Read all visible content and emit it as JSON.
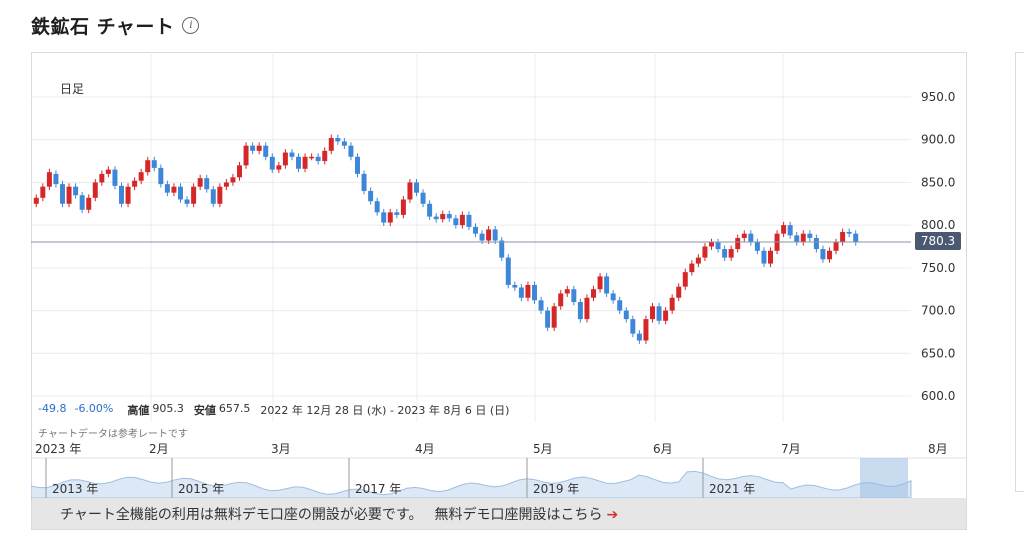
{
  "header": {
    "title": "鉄鉱石 チャート",
    "info_icon": "info-icon"
  },
  "chart_data": {
    "type": "candlestick",
    "period_label": "日足",
    "current_price": "780.3",
    "ylim": [
      600,
      950
    ],
    "y_ticks": [
      "950.0",
      "900.0",
      "850.0",
      "800.0",
      "750.0",
      "700.0",
      "650.0",
      "600.0"
    ],
    "x_ticks": [
      "2023 年",
      "2月",
      "3月",
      "4月",
      "5月",
      "6月",
      "7月",
      "8月"
    ],
    "colors": {
      "up": "#d62728",
      "down": "#3e87d8",
      "price_line": "#8a94a8"
    },
    "series": [
      {
        "o": 825,
        "c": 832
      },
      {
        "o": 832,
        "c": 845
      },
      {
        "o": 845,
        "c": 862
      },
      {
        "o": 860,
        "c": 848
      },
      {
        "o": 848,
        "c": 825
      },
      {
        "o": 825,
        "c": 845
      },
      {
        "o": 845,
        "c": 835
      },
      {
        "o": 835,
        "c": 818
      },
      {
        "o": 818,
        "c": 832
      },
      {
        "o": 832,
        "c": 850
      },
      {
        "o": 850,
        "c": 860
      },
      {
        "o": 860,
        "c": 865
      },
      {
        "o": 865,
        "c": 846
      },
      {
        "o": 846,
        "c": 825
      },
      {
        "o": 825,
        "c": 845
      },
      {
        "o": 845,
        "c": 852
      },
      {
        "o": 852,
        "c": 862
      },
      {
        "o": 862,
        "c": 876
      },
      {
        "o": 876,
        "c": 867
      },
      {
        "o": 867,
        "c": 848
      },
      {
        "o": 848,
        "c": 838
      },
      {
        "o": 838,
        "c": 845
      },
      {
        "o": 845,
        "c": 830
      },
      {
        "o": 830,
        "c": 825
      },
      {
        "o": 825,
        "c": 845
      },
      {
        "o": 845,
        "c": 855
      },
      {
        "o": 855,
        "c": 842
      },
      {
        "o": 842,
        "c": 825
      },
      {
        "o": 825,
        "c": 845
      },
      {
        "o": 845,
        "c": 850
      },
      {
        "o": 850,
        "c": 856
      },
      {
        "o": 856,
        "c": 870
      },
      {
        "o": 870,
        "c": 893
      },
      {
        "o": 893,
        "c": 887
      },
      {
        "o": 887,
        "c": 893
      },
      {
        "o": 893,
        "c": 880
      },
      {
        "o": 880,
        "c": 865
      },
      {
        "o": 865,
        "c": 870
      },
      {
        "o": 870,
        "c": 885
      },
      {
        "o": 885,
        "c": 880
      },
      {
        "o": 880,
        "c": 866
      },
      {
        "o": 866,
        "c": 880
      },
      {
        "o": 880,
        "c": 880
      },
      {
        "o": 880,
        "c": 875
      },
      {
        "o": 875,
        "c": 887
      },
      {
        "o": 887,
        "c": 902
      },
      {
        "o": 902,
        "c": 898
      },
      {
        "o": 898,
        "c": 893
      },
      {
        "o": 893,
        "c": 880
      },
      {
        "o": 880,
        "c": 860
      },
      {
        "o": 860,
        "c": 840
      },
      {
        "o": 840,
        "c": 828
      },
      {
        "o": 828,
        "c": 815
      },
      {
        "o": 815,
        "c": 803
      },
      {
        "o": 803,
        "c": 815
      },
      {
        "o": 815,
        "c": 812
      },
      {
        "o": 812,
        "c": 830
      },
      {
        "o": 830,
        "c": 850
      },
      {
        "o": 850,
        "c": 838
      },
      {
        "o": 838,
        "c": 825
      },
      {
        "o": 825,
        "c": 810
      },
      {
        "o": 810,
        "c": 807
      },
      {
        "o": 807,
        "c": 813
      },
      {
        "o": 813,
        "c": 808
      },
      {
        "o": 808,
        "c": 800
      },
      {
        "o": 800,
        "c": 812
      },
      {
        "o": 812,
        "c": 798
      },
      {
        "o": 798,
        "c": 790
      },
      {
        "o": 790,
        "c": 782
      },
      {
        "o": 782,
        "c": 795
      },
      {
        "o": 795,
        "c": 782
      },
      {
        "o": 782,
        "c": 762
      },
      {
        "o": 762,
        "c": 730
      },
      {
        "o": 730,
        "c": 727
      },
      {
        "o": 727,
        "c": 715
      },
      {
        "o": 715,
        "c": 730
      },
      {
        "o": 730,
        "c": 712
      },
      {
        "o": 712,
        "c": 700
      },
      {
        "o": 700,
        "c": 680
      },
      {
        "o": 680,
        "c": 705
      },
      {
        "o": 705,
        "c": 720
      },
      {
        "o": 720,
        "c": 725
      },
      {
        "o": 725,
        "c": 710
      },
      {
        "o": 710,
        "c": 690
      },
      {
        "o": 690,
        "c": 715
      },
      {
        "o": 715,
        "c": 725
      },
      {
        "o": 725,
        "c": 740
      },
      {
        "o": 740,
        "c": 720
      },
      {
        "o": 720,
        "c": 712
      },
      {
        "o": 712,
        "c": 700
      },
      {
        "o": 700,
        "c": 690
      },
      {
        "o": 690,
        "c": 673
      },
      {
        "o": 673,
        "c": 665
      },
      {
        "o": 665,
        "c": 690
      },
      {
        "o": 690,
        "c": 705
      },
      {
        "o": 705,
        "c": 688
      },
      {
        "o": 688,
        "c": 700
      },
      {
        "o": 700,
        "c": 715
      },
      {
        "o": 715,
        "c": 728
      },
      {
        "o": 728,
        "c": 745
      },
      {
        "o": 745,
        "c": 755
      },
      {
        "o": 755,
        "c": 762
      },
      {
        "o": 762,
        "c": 775
      },
      {
        "o": 775,
        "c": 780
      },
      {
        "o": 780,
        "c": 772
      },
      {
        "o": 772,
        "c": 762
      },
      {
        "o": 762,
        "c": 772
      },
      {
        "o": 772,
        "c": 785
      },
      {
        "o": 785,
        "c": 790
      },
      {
        "o": 790,
        "c": 780
      },
      {
        "o": 780,
        "c": 770
      },
      {
        "o": 770,
        "c": 755
      },
      {
        "o": 755,
        "c": 770
      },
      {
        "o": 770,
        "c": 790
      },
      {
        "o": 790,
        "c": 800
      },
      {
        "o": 800,
        "c": 788
      },
      {
        "o": 788,
        "c": 780
      },
      {
        "o": 780,
        "c": 790
      },
      {
        "o": 790,
        "c": 785
      },
      {
        "o": 785,
        "c": 772
      },
      {
        "o": 772,
        "c": 760
      },
      {
        "o": 760,
        "c": 770
      },
      {
        "o": 770,
        "c": 780
      },
      {
        "o": 780,
        "c": 792
      },
      {
        "o": 792,
        "c": 790
      },
      {
        "o": 790,
        "c": 780
      }
    ]
  },
  "stats": {
    "change": "-49.8",
    "change_pct": "-6.00%",
    "high_label": "高値",
    "high": "905.3",
    "low_label": "安値",
    "low": "657.5",
    "range": "2022 年 12月 28 日 (水) - 2023 年 8月 6 日 (日)"
  },
  "note": "チャートデータは参考レートです",
  "navigator": {
    "years": [
      "2013 年",
      "2015 年",
      "2017 年",
      "2019 年",
      "2021 年"
    ]
  },
  "banner": {
    "message": "チャート全機能の利用は無料デモ口座の開設が必要です。",
    "link": "無料デモ口座開設はこちら",
    "arrow": "➔"
  }
}
